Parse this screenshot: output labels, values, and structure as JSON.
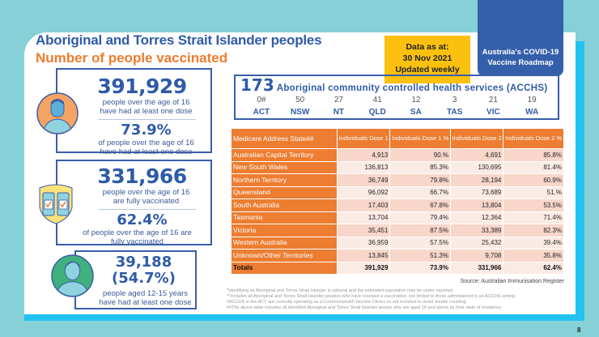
{
  "header": {
    "title": "Aboriginal and Torres Strait Islander peoples",
    "subtitle": "Number of people vaccinated",
    "data_as_at_label": "Data as at:",
    "data_date": "30 Nov 2021",
    "update_freq": "Updated weekly",
    "roadmap_line1": "Australia's COVID-19",
    "roadmap_line2": "Vaccine Roadmap"
  },
  "stats": {
    "dose1": {
      "count": "391,929",
      "count_desc1": "people over the age of 16",
      "count_desc2": "have had at least one dose",
      "pct": "73.9%",
      "pct_desc1": "of people over the age of 16",
      "pct_desc2": "have had at least one dose"
    },
    "dose2": {
      "count": "331,966",
      "count_desc1": "people over the age of 16",
      "count_desc2": "are fully vaccinated",
      "pct": "62.4%",
      "pct_desc1": "of people over the age of 16 are",
      "pct_desc2": "fully vaccinated"
    },
    "youth": {
      "count": "39,188",
      "pct": "(54.7%)",
      "desc1": "people aged 12-15 years",
      "desc2": "have had at least one dose"
    }
  },
  "acchs": {
    "count": "173",
    "title": "Aboriginal community controlled health services (ACCHS)",
    "states": [
      {
        "count": "0#",
        "state": "ACT"
      },
      {
        "count": "50",
        "state": "NSW"
      },
      {
        "count": "27",
        "state": "NT"
      },
      {
        "count": "41",
        "state": "QLD"
      },
      {
        "count": "12",
        "state": "SA"
      },
      {
        "count": "3",
        "state": "TAS"
      },
      {
        "count": "21",
        "state": "VIC"
      },
      {
        "count": "19",
        "state": "WA"
      }
    ]
  },
  "table": {
    "headers": [
      "Medicare Address State##",
      "Individuals Dose 1",
      "Individuals Dose 1 %",
      "Individuals Dose 2",
      "Individuals Dose 2 %"
    ],
    "rows": [
      [
        "Australian Capital Territory",
        "4,913",
        "90.%",
        "4,691",
        "85.8%"
      ],
      [
        "New South Wales",
        "136,813",
        "85.3%",
        "130,695",
        "81.4%"
      ],
      [
        "Northern Territory",
        "36,749",
        "79.8%",
        "28,194",
        "60.9%"
      ],
      [
        "Queensland",
        "96,092",
        "66.7%",
        "73,689",
        "51.%"
      ],
      [
        "South Australia",
        "17,403",
        "67.8%",
        "13,804",
        "53.5%"
      ],
      [
        "Tasmania",
        "13,704",
        "79.4%",
        "12,364",
        "71.4%"
      ],
      [
        "Victoria",
        "35,451",
        "87.5%",
        "33,389",
        "82.3%"
      ],
      [
        "Western Australia",
        "36,959",
        "57.5%",
        "25,432",
        "39.4%"
      ],
      [
        "Unknown/Other Territories",
        "13,845",
        "51.3%",
        "9,708",
        "35.8%"
      ],
      [
        "Totals",
        "391,929",
        "73.9%",
        "331,966",
        "62.4%"
      ]
    ]
  },
  "source": "Source: Australian Immunisation Register",
  "notes": [
    "*Identifying as Aboriginal and Torres Strait Islander is optional and the estimated population may be under reported.",
    "**Includes all Aboriginal and Torres Strait Islander peoples who have received a vaccination, not limited to those administered in an ACCHS setting",
    "#ACCHS in the ACT are currently operating as a Commonwealth Vaccine Clinics so not included to avoid double counting",
    "##The above table includes all identified Aboriginal and Torres Strait Islander people who are aged 16 and above by their state of residence."
  ],
  "page_number": "8",
  "colors": {
    "background": "#86d1d8",
    "accent_blue": "#2e5ba8",
    "orange": "#ed7d31",
    "yellow": "#fcc10f",
    "cyan": "#21c2f0"
  }
}
